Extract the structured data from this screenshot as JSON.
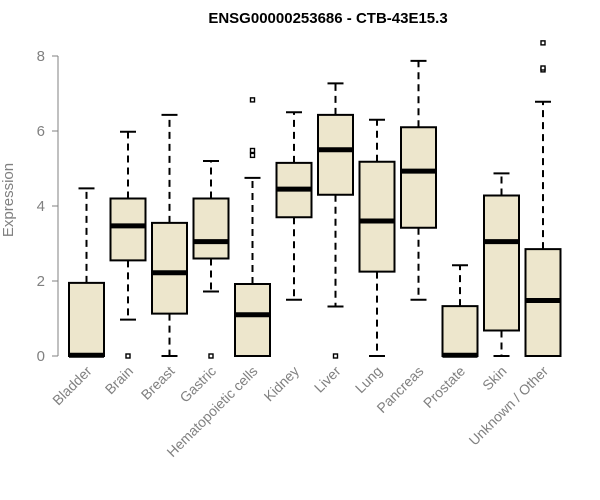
{
  "chart_data": {
    "type": "boxplot",
    "title": "ENSG00000253686 - CTB-43E15.3",
    "xlabel": "",
    "ylabel": "Expression",
    "ylim": [
      0,
      8.4
    ],
    "yticks": [
      0,
      2,
      4,
      6,
      8
    ],
    "grid": false,
    "legend": "none",
    "colors": {
      "box_fill": "#ede6cc",
      "stroke": "#000000",
      "axis": "#808080",
      "title": "#000000"
    },
    "categories": [
      "Bladder",
      "Brain",
      "Breast",
      "Gastric",
      "Hematopoietic cells",
      "Kidney",
      "Liver",
      "Lung",
      "Pancreas",
      "Prostate",
      "Skin",
      "Unknown / Other"
    ],
    "boxes": [
      {
        "whisker_low": 0.0,
        "q1": 0.0,
        "median": 0.02,
        "q3": 1.95,
        "whisker_high": 4.47,
        "outliers": []
      },
      {
        "whisker_low": 0.97,
        "q1": 2.55,
        "median": 3.47,
        "q3": 4.2,
        "whisker_high": 5.98,
        "outliers": [
          0.0
        ]
      },
      {
        "whisker_low": 0.0,
        "q1": 1.13,
        "median": 2.22,
        "q3": 3.55,
        "whisker_high": 6.43,
        "outliers": []
      },
      {
        "whisker_low": 1.72,
        "q1": 2.6,
        "median": 3.05,
        "q3": 4.2,
        "whisker_high": 5.2,
        "outliers": [
          0.0
        ]
      },
      {
        "whisker_low": 0.0,
        "q1": 0.0,
        "median": 1.1,
        "q3": 1.92,
        "whisker_high": 4.75,
        "outliers": [
          5.35,
          5.48,
          6.83
        ]
      },
      {
        "whisker_low": 1.5,
        "q1": 3.7,
        "median": 4.45,
        "q3": 5.15,
        "whisker_high": 6.5,
        "outliers": []
      },
      {
        "whisker_low": 1.32,
        "q1": 4.3,
        "median": 5.5,
        "q3": 6.43,
        "whisker_high": 7.27,
        "outliers": [
          0.0
        ]
      },
      {
        "whisker_low": 0.0,
        "q1": 2.25,
        "median": 3.6,
        "q3": 5.18,
        "whisker_high": 6.3,
        "outliers": []
      },
      {
        "whisker_low": 1.5,
        "q1": 3.42,
        "median": 4.93,
        "q3": 6.1,
        "whisker_high": 7.87,
        "outliers": []
      },
      {
        "whisker_low": 0.0,
        "q1": 0.0,
        "median": 0.02,
        "q3": 1.33,
        "whisker_high": 2.42,
        "outliers": []
      },
      {
        "whisker_low": 0.0,
        "q1": 0.68,
        "median": 3.05,
        "q3": 4.28,
        "whisker_high": 4.87,
        "outliers": []
      },
      {
        "whisker_low": 0.0,
        "q1": 0.0,
        "median": 1.48,
        "q3": 2.85,
        "whisker_high": 6.78,
        "outliers": [
          7.63,
          7.68,
          8.35
        ]
      }
    ]
  }
}
